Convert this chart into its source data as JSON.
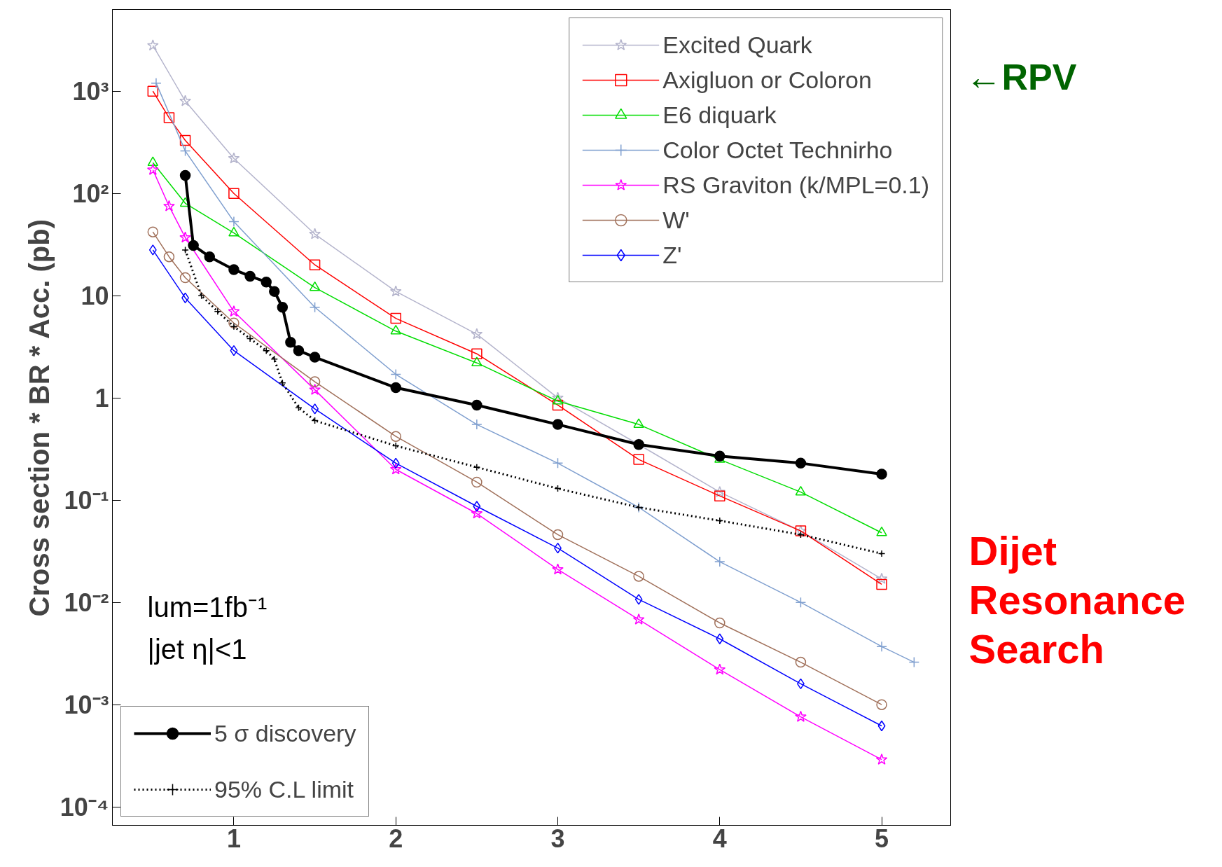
{
  "chart_data": {
    "type": "line",
    "ylabel": "Cross section * BR * Acc. (pb)",
    "log": "y",
    "grid": false,
    "legend": "top right",
    "xlim": [
      0.25,
      5.43
    ],
    "ylim": [
      6.6e-05,
      6300
    ],
    "xticks": [
      1,
      2,
      3,
      4,
      5
    ],
    "yticks": [
      {
        "value": 0.0001,
        "label": "10⁻⁴"
      },
      {
        "value": 0.001,
        "label": "10⁻³"
      },
      {
        "value": 0.01,
        "label": "10⁻²"
      },
      {
        "value": 0.1,
        "label": "10⁻¹"
      },
      {
        "value": 1,
        "label": "1"
      },
      {
        "value": 10,
        "label": "10"
      },
      {
        "value": 100,
        "label": "10²"
      },
      {
        "value": 1000,
        "label": "10³"
      }
    ],
    "series": [
      {
        "name": "Excited Quark",
        "color": "#b4b4cc",
        "marker": "star",
        "x": [
          0.5,
          0.7,
          1.0,
          1.5,
          2.0,
          2.5,
          3.0,
          3.5,
          4.0,
          4.5,
          5.0
        ],
        "values": [
          2800,
          800,
          220,
          40,
          11,
          4.2,
          1.0,
          0.35,
          0.12,
          0.05,
          0.017
        ]
      },
      {
        "name": "Axigluon or Coloron",
        "color": "#ff0000",
        "marker": "square",
        "x": [
          0.5,
          0.6,
          0.7,
          1.0,
          1.5,
          2.0,
          2.5,
          3.0,
          3.5,
          4.0,
          4.5,
          5.0
        ],
        "values": [
          1000,
          550,
          330,
          100,
          20,
          6,
          2.7,
          0.85,
          0.25,
          0.11,
          0.05,
          0.015
        ]
      },
      {
        "name": "E6 diquark",
        "color": "#00dd00",
        "marker": "triangle",
        "x": [
          0.5,
          0.7,
          1.0,
          1.5,
          2.0,
          2.5,
          3.0,
          3.5,
          4.0,
          4.5,
          5.0
        ],
        "values": [
          200,
          80,
          41,
          12,
          4.5,
          2.2,
          0.93,
          0.55,
          0.25,
          0.12,
          0.048
        ]
      },
      {
        "name": "Color Octet Technirho",
        "color": "#7f9fcf",
        "marker": "cross",
        "x": [
          0.52,
          0.7,
          1.0,
          1.5,
          2.0,
          2.5,
          3.0,
          3.5,
          4.0,
          4.5,
          5.0,
          5.2
        ],
        "values": [
          1200,
          260,
          53,
          7.7,
          1.7,
          0.55,
          0.23,
          0.085,
          0.025,
          0.01,
          0.0037,
          0.0026
        ]
      },
      {
        "name": "RS Graviton (k/MPL=0.1)",
        "color": "#ff00ff",
        "marker": "star",
        "x": [
          0.5,
          0.6,
          0.7,
          1.0,
          1.5,
          2.0,
          2.5,
          3.0,
          3.5,
          4.0,
          4.5,
          5.0
        ],
        "values": [
          170,
          75,
          37,
          7,
          1.2,
          0.2,
          0.074,
          0.021,
          0.0068,
          0.0022,
          0.00076,
          0.00029
        ]
      },
      {
        "name": "W'",
        "color": "#a0705a",
        "marker": "circle",
        "x": [
          0.5,
          0.6,
          0.7,
          1.0,
          1.5,
          2.0,
          2.5,
          3.0,
          3.5,
          4.0,
          4.5,
          5.0
        ],
        "values": [
          42,
          24,
          15,
          5.4,
          1.44,
          0.42,
          0.15,
          0.046,
          0.018,
          0.0063,
          0.0026,
          0.001
        ]
      },
      {
        "name": "Z'",
        "color": "#0000ff",
        "marker": "diamond",
        "x": [
          0.5,
          0.7,
          1.0,
          1.5,
          2.0,
          2.5,
          3.0,
          3.5,
          4.0,
          4.5,
          5.0
        ],
        "values": [
          28,
          9.5,
          2.9,
          0.78,
          0.23,
          0.087,
          0.034,
          0.0107,
          0.0044,
          0.0016,
          0.00062
        ]
      },
      {
        "name": "5 σ discovery",
        "color": "#000000",
        "marker": "circle",
        "x": [
          0.7,
          0.75,
          0.85,
          1.0,
          1.1,
          1.2,
          1.25,
          1.3,
          1.35,
          1.4,
          1.5,
          2.0,
          2.5,
          3.0,
          3.5,
          4.0,
          4.5,
          5.0
        ],
        "values": [
          150,
          31,
          24,
          18,
          15.5,
          13.6,
          11,
          7.7,
          3.5,
          2.9,
          2.5,
          1.26,
          0.85,
          0.55,
          0.35,
          0.27,
          0.23,
          0.18
        ]
      },
      {
        "name": "95% C.L limit",
        "color": "#000000",
        "marker": "cross",
        "line_style": "dotted",
        "x": [
          0.7,
          0.8,
          0.9,
          1.0,
          1.1,
          1.2,
          1.25,
          1.3,
          1.4,
          1.5,
          2.0,
          2.5,
          3.0,
          3.5,
          4.0,
          4.5,
          5.0
        ],
        "values": [
          28,
          10,
          7,
          5,
          3.8,
          2.9,
          2.4,
          1.4,
          0.8,
          0.6,
          0.34,
          0.21,
          0.13,
          0.085,
          0.063,
          0.046,
          0.03
        ]
      }
    ],
    "annotations": [
      "lum=1fb⁻¹",
      "|jet η|<1",
      "←RPV",
      "Dijet Resonance Search"
    ]
  }
}
